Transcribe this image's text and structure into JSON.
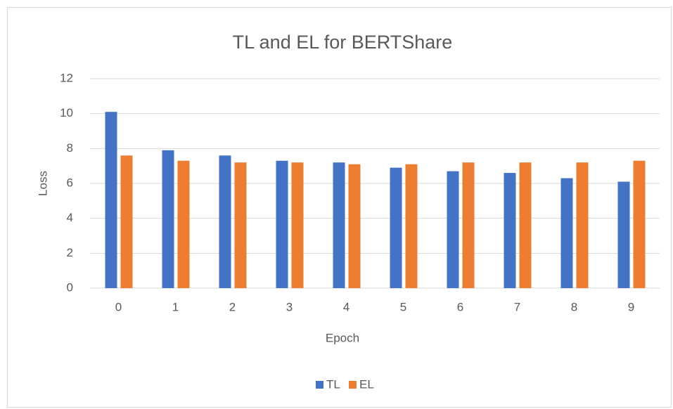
{
  "chart_data": {
    "type": "bar",
    "title": "TL and EL for BERTShare",
    "x_label": "Epoch",
    "y_label": "Loss",
    "categories": [
      "0",
      "1",
      "2",
      "3",
      "4",
      "5",
      "6",
      "7",
      "8",
      "9"
    ],
    "series": [
      {
        "name": "TL",
        "color": "#4472c4",
        "values": [
          10.1,
          7.9,
          7.6,
          7.3,
          7.2,
          6.9,
          6.7,
          6.6,
          6.3,
          6.1
        ]
      },
      {
        "name": "EL",
        "color": "#ed7d31",
        "values": [
          7.6,
          7.3,
          7.2,
          7.2,
          7.1,
          7.1,
          7.2,
          7.2,
          7.2,
          7.3
        ]
      }
    ],
    "ylim": [
      0,
      12
    ],
    "yticks": [
      0,
      2,
      4,
      6,
      8,
      10,
      12
    ],
    "grid": true,
    "legend": "bottom"
  }
}
